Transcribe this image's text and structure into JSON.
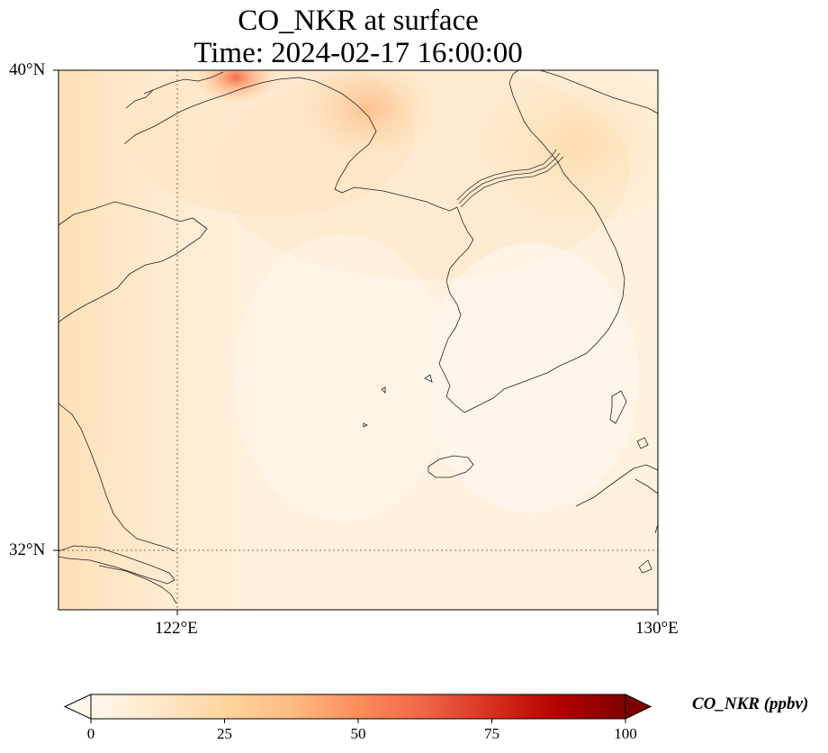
{
  "title": {
    "line1": "CO_NKR at surface",
    "line2": "Time: 2024-02-17 16:00:00"
  },
  "axes": {
    "lat_labels": [
      "40°N",
      "32°N"
    ],
    "lon_labels": [
      "122°E",
      "130°E"
    ],
    "lon_range": [
      120,
      130
    ],
    "lat_range": [
      31,
      40
    ],
    "gridlines": [
      {
        "lon": 122
      },
      {
        "lat": 32
      }
    ]
  },
  "colorbar": {
    "label": "CO_NKR (ppbv)",
    "ticks": [
      "0",
      "25",
      "50",
      "75",
      "100"
    ],
    "range": [
      0,
      100
    ],
    "colormap": "OrRd",
    "colors": [
      "#fff7ec",
      "#fee8c8",
      "#fdd49e",
      "#fdbb84",
      "#fc8d59",
      "#ef6548",
      "#d7301f",
      "#b30000",
      "#7f0000"
    ],
    "extend": "both"
  },
  "map": {
    "field": "CO_NKR",
    "level": "surface",
    "units": "ppbv",
    "region": "Yellow Sea / Korean Peninsula",
    "features": [
      "coastlines",
      "country borders"
    ]
  }
}
